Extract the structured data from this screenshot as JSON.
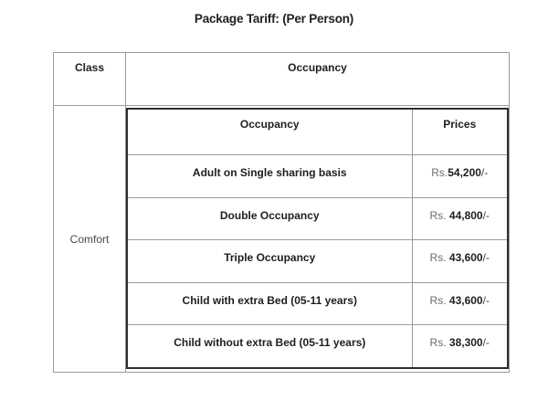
{
  "title": "Package Tariff: (Per Person)",
  "outer_table": {
    "class_header": "Class",
    "occupancy_header": "Occupancy",
    "class_value": "Comfort"
  },
  "inner_table": {
    "occupancy_header": "Occupancy",
    "prices_header": "Prices",
    "rows": [
      {
        "occupancy": "Adult on Single sharing basis",
        "price_prefix": "Rs.",
        "price_amount": "54,200",
        "price_suffix": "/-"
      },
      {
        "occupancy": "Double Occupancy",
        "price_prefix": "Rs. ",
        "price_amount": "44,800",
        "price_suffix": "/-"
      },
      {
        "occupancy": "Triple Occupancy",
        "price_prefix": "Rs. ",
        "price_amount": "43,600",
        "price_suffix": "/-"
      },
      {
        "occupancy": "Child with extra Bed (05-11 years)",
        "price_prefix": "Rs. ",
        "price_amount": "43,600",
        "price_suffix": "/-"
      },
      {
        "occupancy": "Child without extra Bed (05-11 years)",
        "price_prefix": "Rs. ",
        "price_amount": "38,300",
        "price_suffix": "/-"
      }
    ]
  },
  "colors": {
    "background": "#ffffff",
    "text_dark": "#1e1e1e",
    "currency_muted": "#6b6b6b",
    "class_value_text": "#4a4a4a",
    "outer_border": "#9b9b9b",
    "inner_frame": "#2d2d2d"
  }
}
